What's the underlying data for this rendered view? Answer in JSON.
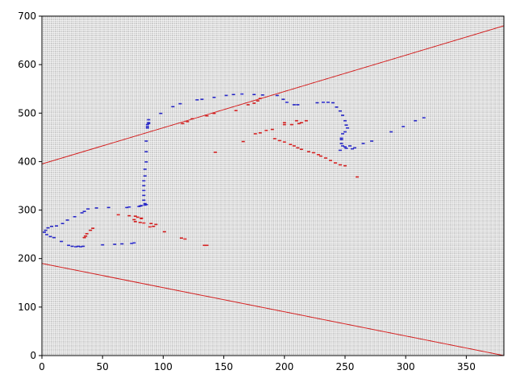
{
  "chart_data": {
    "type": "scatter",
    "title": "",
    "xlabel": "",
    "ylabel": "",
    "xlim": [
      0,
      381
    ],
    "ylim": [
      0,
      700
    ],
    "x_ticks": [
      0,
      50,
      100,
      150,
      200,
      250,
      300,
      350
    ],
    "y_ticks": [
      0,
      100,
      200,
      300,
      400,
      500,
      600,
      700
    ],
    "grid": true,
    "grid_cell": 2,
    "colors": {
      "background": "#c8c8c8",
      "grid": "#ffffff",
      "blue": "#2a2ac8",
      "red": "#d42020",
      "border_line": "#d42020"
    },
    "lines": [
      {
        "color": "red",
        "points": [
          [
            0,
            395
          ],
          [
            381,
            680
          ]
        ]
      },
      {
        "color": "red",
        "points": [
          [
            0,
            190
          ],
          [
            381,
            0
          ]
        ]
      },
      {
        "color": "red",
        "points": [
          [
            0,
            190
          ],
          [
            0,
            395
          ]
        ]
      },
      {
        "color": "red",
        "points": [
          [
            381,
            0
          ],
          [
            381,
            680
          ]
        ]
      }
    ],
    "series": [
      {
        "color": "blue",
        "points": [
          [
            315,
            490
          ],
          [
            308,
            484
          ],
          [
            298,
            472
          ],
          [
            288,
            461
          ],
          [
            272,
            442
          ],
          [
            265,
            437
          ],
          [
            258,
            428
          ],
          [
            256,
            426
          ],
          [
            254,
            432
          ],
          [
            251,
            427
          ],
          [
            248,
            432
          ],
          [
            247,
            437
          ],
          [
            247,
            445
          ],
          [
            247,
            448
          ],
          [
            248,
            457
          ],
          [
            250,
            461
          ],
          [
            252,
            469
          ],
          [
            251,
            475
          ],
          [
            250,
            484
          ],
          [
            248,
            495
          ],
          [
            246,
            504
          ],
          [
            243,
            512
          ],
          [
            240,
            521
          ],
          [
            236,
            522
          ],
          [
            232,
            522
          ],
          [
            227,
            521
          ],
          [
            211,
            517
          ],
          [
            208,
            517
          ],
          [
            202,
            522
          ],
          [
            199,
            528
          ],
          [
            194,
            536
          ],
          [
            182,
            537
          ],
          [
            175,
            538
          ],
          [
            165,
            539
          ],
          [
            158,
            538
          ],
          [
            152,
            536
          ],
          [
            142,
            532
          ],
          [
            132,
            528
          ],
          [
            128,
            527
          ],
          [
            114,
            519
          ],
          [
            108,
            513
          ],
          [
            98,
            499
          ],
          [
            88,
            486
          ],
          [
            88,
            480
          ],
          [
            88,
            478
          ],
          [
            87,
            476
          ],
          [
            87,
            472
          ],
          [
            87,
            469
          ],
          [
            86,
            442
          ],
          [
            86,
            420
          ],
          [
            86,
            399
          ],
          [
            85,
            384
          ],
          [
            85,
            370
          ],
          [
            84,
            360
          ],
          [
            84,
            350
          ],
          [
            84,
            340
          ],
          [
            84,
            330
          ],
          [
            84,
            320
          ],
          [
            85,
            313
          ],
          [
            86,
            311
          ],
          [
            85,
            310
          ],
          [
            82,
            309
          ],
          [
            81,
            308
          ],
          [
            80,
            307
          ],
          [
            72,
            306
          ],
          [
            70,
            305
          ],
          [
            55,
            305
          ],
          [
            45,
            304
          ],
          [
            38,
            302
          ],
          [
            35,
            297
          ],
          [
            33,
            294
          ],
          [
            27,
            286
          ],
          [
            21,
            279
          ],
          [
            17,
            272
          ],
          [
            12,
            267
          ],
          [
            8,
            266
          ],
          [
            5,
            263
          ],
          [
            3,
            258
          ],
          [
            2,
            254
          ],
          [
            4,
            249
          ],
          [
            7,
            245
          ],
          [
            10,
            243
          ],
          [
            16,
            235
          ],
          [
            22,
            227
          ],
          [
            25,
            225
          ],
          [
            28,
            224
          ],
          [
            30,
            225
          ],
          [
            32,
            224
          ],
          [
            34,
            225
          ],
          [
            50,
            228
          ],
          [
            60,
            229
          ],
          [
            66,
            230
          ],
          [
            74,
            231
          ],
          [
            76,
            232
          ],
          [
            246,
            423
          ],
          [
            250,
            430
          ]
        ]
      },
      {
        "color": "red",
        "points": [
          [
            180,
            530
          ],
          [
            178,
            525
          ],
          [
            175,
            520
          ],
          [
            170,
            517
          ],
          [
            160,
            505
          ],
          [
            142,
            499
          ],
          [
            136,
            494
          ],
          [
            124,
            488
          ],
          [
            120,
            482
          ],
          [
            116,
            478
          ],
          [
            210,
            484
          ],
          [
            214,
            480
          ],
          [
            218,
            484
          ],
          [
            212,
            478
          ],
          [
            206,
            476
          ],
          [
            200,
            476
          ],
          [
            190,
            466
          ],
          [
            185,
            464
          ],
          [
            180,
            459
          ],
          [
            176,
            457
          ],
          [
            192,
            447
          ],
          [
            196,
            443
          ],
          [
            200,
            440
          ],
          [
            205,
            435
          ],
          [
            208,
            432
          ],
          [
            211,
            428
          ],
          [
            214,
            425
          ],
          [
            220,
            420
          ],
          [
            224,
            418
          ],
          [
            228,
            414
          ],
          [
            230,
            411
          ],
          [
            234,
            407
          ],
          [
            238,
            402
          ],
          [
            242,
            397
          ],
          [
            246,
            393
          ],
          [
            250,
            391
          ],
          [
            260,
            368
          ],
          [
            166,
            441
          ],
          [
            143,
            419
          ],
          [
            200,
            480
          ],
          [
            63,
            290
          ],
          [
            72,
            288
          ],
          [
            77,
            287
          ],
          [
            79,
            285
          ],
          [
            82,
            283
          ],
          [
            82,
            282
          ],
          [
            76,
            280
          ],
          [
            77,
            276
          ],
          [
            81,
            274
          ],
          [
            84,
            273
          ],
          [
            90,
            272
          ],
          [
            94,
            270
          ],
          [
            92,
            266
          ],
          [
            89,
            265
          ],
          [
            101,
            255
          ],
          [
            115,
            242
          ],
          [
            118,
            240
          ],
          [
            136,
            227
          ],
          [
            134,
            227
          ],
          [
            42,
            262
          ],
          [
            40,
            258
          ],
          [
            37,
            251
          ],
          [
            36,
            246
          ],
          [
            35,
            243
          ]
        ]
      }
    ]
  }
}
